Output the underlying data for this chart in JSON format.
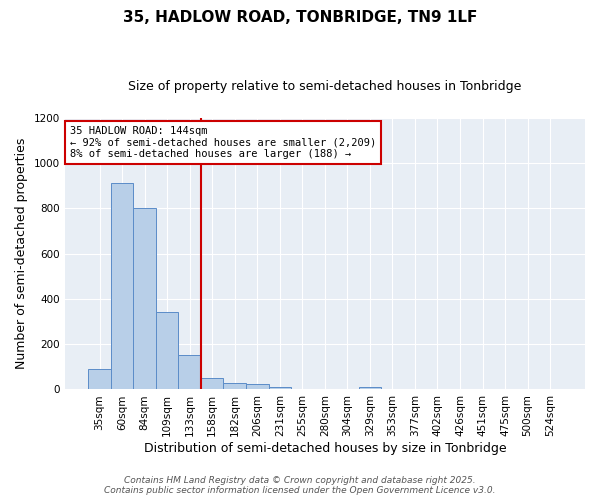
{
  "title": "35, HADLOW ROAD, TONBRIDGE, TN9 1LF",
  "subtitle": "Size of property relative to semi-detached houses in Tonbridge",
  "xlabel": "Distribution of semi-detached houses by size in Tonbridge",
  "ylabel": "Number of semi-detached properties",
  "categories": [
    "35sqm",
    "60sqm",
    "84sqm",
    "109sqm",
    "133sqm",
    "158sqm",
    "182sqm",
    "206sqm",
    "231sqm",
    "255sqm",
    "280sqm",
    "304sqm",
    "329sqm",
    "353sqm",
    "377sqm",
    "402sqm",
    "426sqm",
    "451sqm",
    "475sqm",
    "500sqm",
    "524sqm"
  ],
  "values": [
    90,
    910,
    800,
    340,
    150,
    50,
    28,
    25,
    10,
    0,
    0,
    0,
    10,
    0,
    0,
    0,
    0,
    0,
    0,
    0,
    0
  ],
  "bar_color": "#b8cfe8",
  "bar_edge_color": "#5b8cc8",
  "vline_index": 4,
  "vline_color": "#cc0000",
  "ylim": [
    0,
    1200
  ],
  "yticks": [
    0,
    200,
    400,
    600,
    800,
    1000,
    1200
  ],
  "annotation_title": "35 HADLOW ROAD: 144sqm",
  "annotation_line1": "← 92% of semi-detached houses are smaller (2,209)",
  "annotation_line2": "8% of semi-detached houses are larger (188) →",
  "annotation_box_color": "#ffffff",
  "annotation_box_edge": "#cc0000",
  "footer1": "Contains HM Land Registry data © Crown copyright and database right 2025.",
  "footer2": "Contains public sector information licensed under the Open Government Licence v3.0.",
  "plot_bg_color": "#e8eef5",
  "fig_bg_color": "#ffffff",
  "grid_color": "#ffffff",
  "title_fontsize": 11,
  "subtitle_fontsize": 9,
  "axis_label_fontsize": 9,
  "tick_fontsize": 7.5,
  "footer_fontsize": 6.5,
  "annotation_fontsize": 7.5
}
